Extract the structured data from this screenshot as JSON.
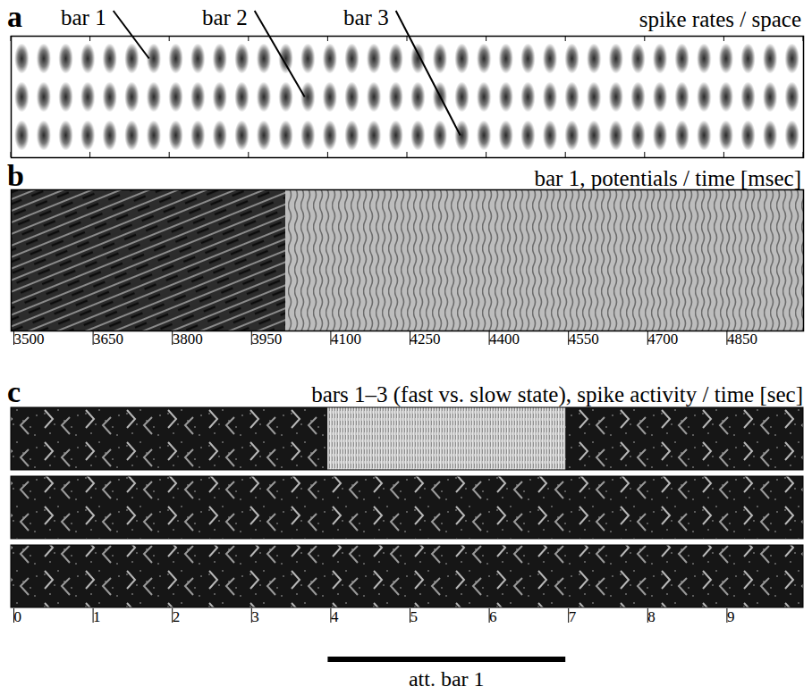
{
  "chart_data": [
    {
      "type": "image",
      "panel": "a",
      "title": "spike rates / space",
      "annotations": [
        "bar 1",
        "bar 2",
        "bar 3"
      ],
      "tick_labels": false
    },
    {
      "type": "image",
      "panel": "b",
      "title": "bar 1, potentials / time [msec]",
      "xlim": [
        3500,
        5000
      ],
      "xticks": [
        3500,
        3650,
        3800,
        3950,
        4100,
        4250,
        4400,
        4550,
        4700,
        4850
      ],
      "segments": [
        {
          "start": 3500,
          "end": 4020,
          "state": "slow"
        },
        {
          "start": 4020,
          "end": 5000,
          "state": "fast"
        }
      ]
    },
    {
      "type": "image",
      "panel": "c",
      "title": "bars 1–3 (fast vs. slow state), spike activity / time [sec]",
      "xlim": [
        0,
        10
      ],
      "xticks": [
        0,
        1,
        2,
        3,
        4,
        5,
        6,
        7,
        8,
        9
      ],
      "rows": [
        [
          {
            "start": 0,
            "end": 4,
            "state": "slow"
          },
          {
            "start": 4,
            "end": 7,
            "state": "fast"
          },
          {
            "start": 7,
            "end": 10,
            "state": "slow"
          }
        ],
        [
          {
            "start": 0,
            "end": 10,
            "state": "slow"
          }
        ],
        [
          {
            "start": 0,
            "end": 10,
            "state": "slow"
          }
        ]
      ],
      "annotations": [
        {
          "text": "att. bar 1",
          "start": 4,
          "end": 7
        }
      ]
    }
  ]
}
